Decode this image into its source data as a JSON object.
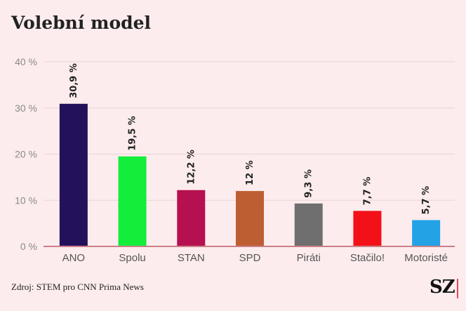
{
  "title": "Volební model",
  "source": "Zdroj: STEM pro CNN Prima News",
  "logo": "SZ",
  "colors": {
    "background": "#fdeced",
    "grid": "#e9d4d6",
    "axis": "#c98088",
    "accent": "#e0485c"
  },
  "chart_data": {
    "type": "bar",
    "categories": [
      "ANO",
      "Spolu",
      "STAN",
      "SPD",
      "Piráti",
      "Stačilo!",
      "Motoristé"
    ],
    "values": [
      30.9,
      19.5,
      12.2,
      12,
      9.3,
      7.7,
      5.7
    ],
    "value_labels": [
      "30,9 %",
      "19,5 %",
      "12,2 %",
      "12 %",
      "9,3 %",
      "7,7 %",
      "5,7 %"
    ],
    "colors": [
      "#24115c",
      "#12ee3a",
      "#b5104f",
      "#bd5e32",
      "#6f6f6f",
      "#f41018",
      "#23a2e6"
    ],
    "yticks": [
      0,
      10,
      20,
      30,
      40
    ],
    "ytick_labels": [
      "0 %",
      "10 %",
      "20 %",
      "30 %",
      "40 %"
    ],
    "ylim": [
      0,
      40
    ],
    "grid": true,
    "title": "Volební model",
    "xlabel": "",
    "ylabel": ""
  }
}
